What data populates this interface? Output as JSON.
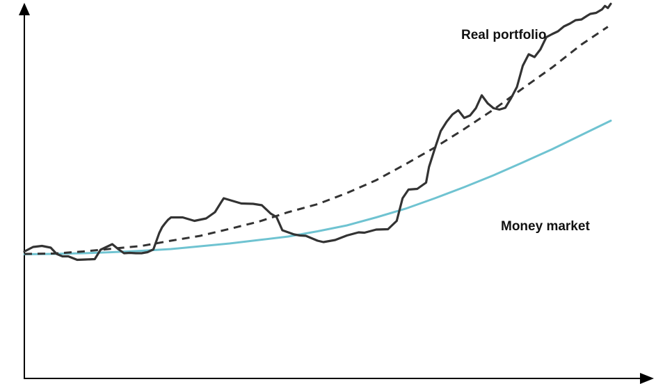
{
  "chart_data": {
    "type": "line",
    "title": "",
    "xlabel": "",
    "ylabel": "",
    "xlim": [
      0,
      100
    ],
    "ylim": [
      0,
      100
    ],
    "grid": false,
    "legend": "none",
    "series": [
      {
        "name": "Real portfolio",
        "color": "#333333",
        "style": "solid",
        "x": [
          0,
          1.5,
          3,
          4.5,
          5.5,
          6.5,
          7.5,
          9,
          10.5,
          12,
          13,
          14,
          15,
          16,
          17,
          18,
          19,
          20,
          21,
          22,
          23,
          23.5,
          24,
          24.5,
          25,
          27,
          29,
          31,
          32.5,
          33.5,
          34,
          35,
          37,
          39,
          40.5,
          42,
          43,
          44,
          46,
          47,
          48,
          49,
          50,
          51,
          53,
          55,
          57,
          58,
          60,
          62,
          63.5,
          64.5,
          65.5,
          67,
          68.5,
          69,
          70,
          71,
          72,
          73,
          74,
          75,
          76,
          77,
          78,
          79,
          80,
          81,
          82,
          83,
          84,
          85,
          86,
          87,
          88,
          89,
          90,
          91,
          92,
          93,
          94,
          95,
          96,
          96.5,
          97.5,
          98.5,
          99,
          99.5,
          100
        ],
        "y": [
          31.7,
          33,
          33.3,
          32.8,
          31,
          30.3,
          30.3,
          29.3,
          29.4,
          29.5,
          32.2,
          33,
          33.8,
          32.4,
          31.2,
          31.3,
          31.2,
          31.2,
          31.5,
          32.3,
          37,
          38.7,
          39.8,
          40.8,
          41.5,
          41.5,
          40.5,
          41.2,
          43,
          45.7,
          47,
          46.5,
          45.5,
          45.4,
          45,
          42.6,
          41.6,
          37.8,
          36.6,
          36.3,
          36.2,
          35.5,
          34.8,
          34.4,
          35,
          36.3,
          37.2,
          37.1,
          38,
          38.1,
          40.5,
          47,
          49.5,
          49.7,
          51.5,
          56,
          61.3,
          66.3,
          69,
          71.1,
          72.3,
          70.1,
          70.8,
          72.9,
          76.6,
          74.3,
          72.9,
          72.5,
          73,
          75.8,
          79,
          85.1,
          88.4,
          87.6,
          89.8,
          93.3,
          94.2,
          95,
          96.4,
          97.2,
          98.2,
          98.4,
          99.5,
          100,
          100.3,
          101.3,
          102.3,
          101.7,
          102.9
        ]
      },
      {
        "name": "",
        "color": "#333333",
        "style": "dashed",
        "x": [
          0,
          5,
          10,
          15,
          20,
          25,
          30,
          35,
          40,
          45,
          50,
          55,
          60,
          65,
          70,
          75,
          80,
          85,
          90,
          95,
          99.5
        ],
        "y": [
          31,
          31.1,
          31.7,
          32.5,
          33.3,
          34.8,
          36.2,
          38.2,
          40.3,
          43,
          45.3,
          48.5,
          52.2,
          56.8,
          61.6,
          66.9,
          72.5,
          78.6,
          84.6,
          91.2,
          96.3
        ]
      },
      {
        "name": "Money market",
        "color": "#6fc3d1",
        "style": "solid",
        "x": [
          0,
          5,
          10,
          15,
          20,
          25,
          30,
          35,
          40,
          45,
          50,
          55,
          60,
          65,
          70,
          75,
          80,
          85,
          90,
          95,
          100
        ],
        "y": [
          30.9,
          31,
          31.2,
          31.5,
          31.9,
          32.4,
          33.2,
          34,
          35,
          36,
          37.5,
          39.2,
          41.5,
          44,
          47,
          50.2,
          53.6,
          57.3,
          61.1,
          65.2,
          69.3
        ]
      }
    ],
    "annotations": [
      {
        "text": "Real portfolio",
        "series": "Real portfolio"
      },
      {
        "text": "Money market",
        "series": "Money market"
      }
    ]
  }
}
